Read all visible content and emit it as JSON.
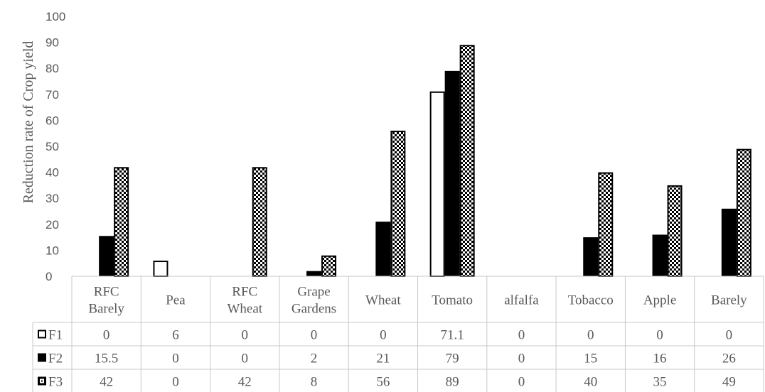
{
  "chart_data": {
    "type": "bar",
    "ylabel": "Reduction rate of  Crop yield",
    "ylim": [
      0,
      100
    ],
    "yticks": [
      0,
      10,
      20,
      30,
      40,
      50,
      60,
      70,
      80,
      90,
      100
    ],
    "grid": false,
    "legend": "data-table-left",
    "categories": [
      [
        "RFC",
        "Barely"
      ],
      [
        "Pea"
      ],
      [
        "RFC",
        "Wheat"
      ],
      [
        "Grape",
        "Gardens"
      ],
      [
        "Wheat"
      ],
      [
        "Tomato"
      ],
      [
        "alfalfa"
      ],
      [
        "Tobacco"
      ],
      [
        "Apple"
      ],
      [
        "Barely"
      ]
    ],
    "series": [
      {
        "name": "F1",
        "style": "outline",
        "values": [
          0,
          6,
          0,
          0,
          0,
          71.1,
          0,
          0,
          0,
          0
        ]
      },
      {
        "name": "F2",
        "style": "solid",
        "values": [
          15.5,
          0,
          0,
          2,
          21,
          79,
          0,
          15,
          16,
          26
        ]
      },
      {
        "name": "F3",
        "style": "checkered",
        "values": [
          42,
          0,
          42,
          8,
          56,
          89,
          0,
          40,
          35,
          49
        ]
      }
    ]
  },
  "colors": {
    "text": "#595959",
    "bar": "#000000",
    "fill_light": "#ffffff"
  }
}
